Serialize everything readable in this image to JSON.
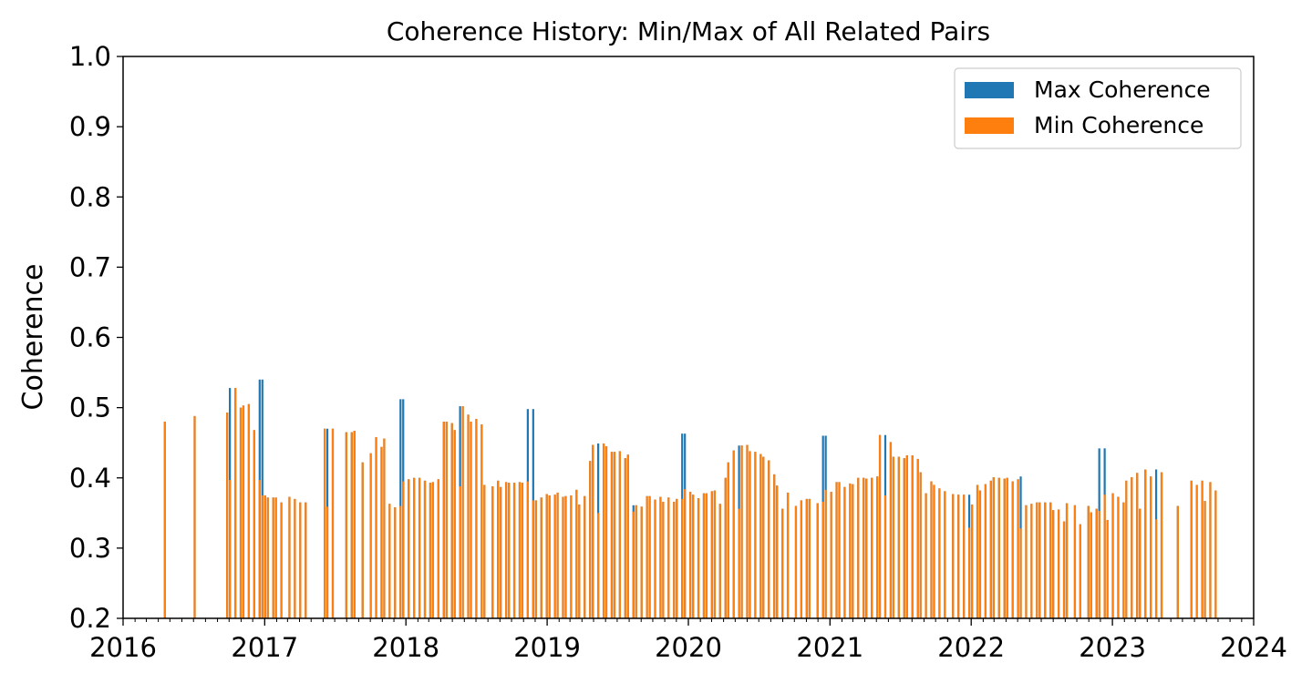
{
  "chart_data": {
    "type": "bar",
    "title": "Coherence History: Min/Max of All Related Pairs",
    "xlabel": "",
    "ylabel": "Coherence",
    "ylim": [
      0.2,
      1.0
    ],
    "xlim": [
      "2016-01-01",
      "2024-01-01"
    ],
    "yticks": [
      "0.2",
      "0.3",
      "0.4",
      "0.5",
      "0.6",
      "0.7",
      "0.8",
      "0.9",
      "1.0"
    ],
    "xticks": [
      "2016",
      "2017",
      "2018",
      "2019",
      "2020",
      "2021",
      "2022",
      "2023",
      "2024"
    ],
    "grid": false,
    "legend_position": "top-right",
    "series": [
      {
        "name": "Max Coherence",
        "color": "#1f77b4"
      },
      {
        "name": "Min Coherence",
        "color": "#ff7f0e"
      }
    ],
    "dates": [
      "2016-04-18",
      "2016-07-04",
      "2016-09-26",
      "2016-10-03",
      "2016-10-17",
      "2016-10-31",
      "2016-11-07",
      "2016-11-21",
      "2016-12-05",
      "2016-12-19",
      "2016-12-26",
      "2017-01-02",
      "2017-01-09",
      "2017-01-23",
      "2017-01-30",
      "2017-02-13",
      "2017-03-06",
      "2017-03-20",
      "2017-04-03",
      "2017-04-17",
      "2017-06-05",
      "2017-06-12",
      "2017-06-26",
      "2017-07-31",
      "2017-08-14",
      "2017-08-21",
      "2017-09-11",
      "2017-10-02",
      "2017-10-16",
      "2017-10-30",
      "2017-11-06",
      "2017-11-20",
      "2017-12-04",
      "2017-12-18",
      "2017-12-25",
      "2018-01-08",
      "2018-01-22",
      "2018-02-05",
      "2018-02-19",
      "2018-03-05",
      "2018-03-12",
      "2018-03-26",
      "2018-04-09",
      "2018-04-16",
      "2018-04-30",
      "2018-05-07",
      "2018-05-21",
      "2018-05-28",
      "2018-06-11",
      "2018-06-18",
      "2018-07-02",
      "2018-07-16",
      "2018-07-23",
      "2018-08-13",
      "2018-08-27",
      "2018-09-03",
      "2018-09-17",
      "2018-09-24",
      "2018-10-08",
      "2018-10-22",
      "2018-10-29",
      "2018-11-12",
      "2018-11-26",
      "2018-12-03",
      "2018-12-17",
      "2018-12-31",
      "2019-01-07",
      "2019-01-21",
      "2019-01-28",
      "2019-02-11",
      "2019-02-18",
      "2019-03-04",
      "2019-03-18",
      "2019-03-25",
      "2019-04-08",
      "2019-04-22",
      "2019-04-29",
      "2019-05-13",
      "2019-05-27",
      "2019-06-03",
      "2019-06-17",
      "2019-06-24",
      "2019-07-08",
      "2019-07-22",
      "2019-07-29",
      "2019-08-12",
      "2019-08-19",
      "2019-09-02",
      "2019-09-16",
      "2019-09-23",
      "2019-10-07",
      "2019-10-21",
      "2019-10-28",
      "2019-11-11",
      "2019-11-25",
      "2019-12-02",
      "2019-12-16",
      "2019-12-23",
      "2020-01-06",
      "2020-01-13",
      "2020-01-27",
      "2020-02-10",
      "2020-02-17",
      "2020-03-02",
      "2020-03-09",
      "2020-03-23",
      "2020-04-06",
      "2020-04-13",
      "2020-04-27",
      "2020-05-11",
      "2020-05-18",
      "2020-06-01",
      "2020-06-08",
      "2020-06-22",
      "2020-07-06",
      "2020-07-13",
      "2020-07-27",
      "2020-08-10",
      "2020-08-17",
      "2020-08-31",
      "2020-09-14",
      "2020-10-05",
      "2020-10-19",
      "2020-11-02",
      "2020-11-09",
      "2020-11-30",
      "2020-12-14",
      "2020-12-21",
      "2021-01-04",
      "2021-01-18",
      "2021-01-25",
      "2021-02-08",
      "2021-02-22",
      "2021-03-01",
      "2021-03-15",
      "2021-03-29",
      "2021-04-05",
      "2021-04-19",
      "2021-05-03",
      "2021-05-10",
      "2021-05-24",
      "2021-06-07",
      "2021-06-14",
      "2021-06-28",
      "2021-07-12",
      "2021-07-19",
      "2021-08-02",
      "2021-08-16",
      "2021-08-23",
      "2021-09-06",
      "2021-09-20",
      "2021-09-27",
      "2021-10-11",
      "2021-10-25",
      "2021-11-15",
      "2021-11-29",
      "2021-12-13",
      "2021-12-27",
      "2022-01-03",
      "2022-01-17",
      "2022-01-24",
      "2022-02-07",
      "2022-02-21",
      "2022-02-28",
      "2022-03-14",
      "2022-03-28",
      "2022-04-04",
      "2022-04-18",
      "2022-05-02",
      "2022-05-09",
      "2022-05-23",
      "2022-06-06",
      "2022-06-20",
      "2022-06-27",
      "2022-07-11",
      "2022-07-25",
      "2022-08-01",
      "2022-08-15",
      "2022-08-29",
      "2022-09-05",
      "2022-09-26",
      "2022-10-10",
      "2022-10-31",
      "2022-11-07",
      "2022-11-21",
      "2022-11-28",
      "2022-12-12",
      "2022-12-19",
      "2023-01-02",
      "2023-01-16",
      "2023-01-30",
      "2023-02-06",
      "2023-02-20",
      "2023-03-06",
      "2023-03-13",
      "2023-03-27",
      "2023-04-10",
      "2023-04-24",
      "2023-05-08",
      "2023-06-19",
      "2023-07-24",
      "2023-08-07",
      "2023-08-21",
      "2023-08-28",
      "2023-09-11",
      "2023-09-25",
      "2023-10-02",
      "2023-10-16"
    ],
    "max_values": [
      0.48,
      0.488,
      0.493,
      0.528,
      0.528,
      0.5,
      0.503,
      0.505,
      0.468,
      0.54,
      0.54,
      0.375,
      0.372,
      0.372,
      0.372,
      0.365,
      0.373,
      0.37,
      0.365,
      0.365,
      0.47,
      0.47,
      0.47,
      0.465,
      0.465,
      0.467,
      0.422,
      0.435,
      0.458,
      0.444,
      0.456,
      0.363,
      0.358,
      0.512,
      0.512,
      0.398,
      0.4,
      0.4,
      0.396,
      0.393,
      0.394,
      0.398,
      0.48,
      0.48,
      0.478,
      0.468,
      0.502,
      0.502,
      0.49,
      0.48,
      0.484,
      0.476,
      0.39,
      0.388,
      0.396,
      0.387,
      0.394,
      0.393,
      0.393,
      0.394,
      0.393,
      0.498,
      0.498,
      0.368,
      0.372,
      0.377,
      0.375,
      0.376,
      0.379,
      0.373,
      0.374,
      0.375,
      0.383,
      0.362,
      0.374,
      0.424,
      0.447,
      0.449,
      0.449,
      0.445,
      0.437,
      0.437,
      0.438,
      0.428,
      0.433,
      0.361,
      0.361,
      0.359,
      0.374,
      0.374,
      0.369,
      0.373,
      0.366,
      0.372,
      0.366,
      0.37,
      0.463,
      0.463,
      0.38,
      0.376,
      0.371,
      0.378,
      0.378,
      0.381,
      0.382,
      0.363,
      0.4,
      0.422,
      0.439,
      0.446,
      0.446,
      0.447,
      0.438,
      0.437,
      0.434,
      0.43,
      0.425,
      0.405,
      0.389,
      0.356,
      0.379,
      0.36,
      0.368,
      0.37,
      0.37,
      0.364,
      0.46,
      0.46,
      0.38,
      0.394,
      0.394,
      0.387,
      0.392,
      0.391,
      0.4,
      0.4,
      0.399,
      0.4,
      0.402,
      0.461,
      0.461,
      0.451,
      0.43,
      0.43,
      0.428,
      0.432,
      0.432,
      0.427,
      0.408,
      0.378,
      0.395,
      0.39,
      0.385,
      0.381,
      0.377,
      0.376,
      0.376,
      0.376,
      0.362,
      0.39,
      0.382,
      0.391,
      0.396,
      0.401,
      0.4,
      0.399,
      0.4,
      0.395,
      0.398,
      0.402,
      0.361,
      0.363,
      0.365,
      0.365,
      0.365,
      0.365,
      0.354,
      0.355,
      0.338,
      0.364,
      0.361,
      0.334,
      0.36,
      0.351,
      0.356,
      0.442,
      0.442,
      0.34,
      0.378,
      0.373,
      0.365,
      0.396,
      0.401,
      0.407,
      0.356,
      0.412,
      0.402,
      0.412,
      0.408,
      0.36,
      0.396,
      0.39,
      0.396,
      0.367,
      0.394,
      0.382
    ],
    "min_values": [
      0.48,
      0.488,
      0.493,
      0.397,
      0.528,
      0.5,
      0.503,
      0.505,
      0.468,
      0.397,
      0.375,
      0.375,
      0.372,
      0.372,
      0.372,
      0.365,
      0.373,
      0.37,
      0.365,
      0.365,
      0.47,
      0.359,
      0.47,
      0.465,
      0.465,
      0.467,
      0.422,
      0.435,
      0.458,
      0.444,
      0.456,
      0.363,
      0.358,
      0.36,
      0.395,
      0.398,
      0.4,
      0.4,
      0.396,
      0.393,
      0.394,
      0.398,
      0.48,
      0.48,
      0.478,
      0.468,
      0.388,
      0.502,
      0.49,
      0.48,
      0.484,
      0.476,
      0.39,
      0.388,
      0.396,
      0.387,
      0.394,
      0.393,
      0.393,
      0.394,
      0.393,
      0.395,
      0.368,
      0.368,
      0.372,
      0.377,
      0.375,
      0.376,
      0.379,
      0.373,
      0.374,
      0.375,
      0.383,
      0.362,
      0.374,
      0.424,
      0.447,
      0.35,
      0.449,
      0.445,
      0.437,
      0.437,
      0.438,
      0.428,
      0.433,
      0.352,
      0.361,
      0.359,
      0.374,
      0.374,
      0.369,
      0.373,
      0.366,
      0.372,
      0.366,
      0.37,
      0.37,
      0.384,
      0.38,
      0.376,
      0.371,
      0.378,
      0.378,
      0.381,
      0.382,
      0.363,
      0.4,
      0.422,
      0.439,
      0.356,
      0.446,
      0.447,
      0.438,
      0.437,
      0.434,
      0.43,
      0.425,
      0.405,
      0.389,
      0.356,
      0.379,
      0.36,
      0.368,
      0.37,
      0.37,
      0.364,
      0.366,
      0.383,
      0.38,
      0.394,
      0.394,
      0.387,
      0.392,
      0.391,
      0.4,
      0.4,
      0.399,
      0.4,
      0.402,
      0.461,
      0.375,
      0.451,
      0.43,
      0.43,
      0.428,
      0.432,
      0.432,
      0.427,
      0.408,
      0.378,
      0.395,
      0.39,
      0.385,
      0.381,
      0.377,
      0.376,
      0.376,
      0.329,
      0.362,
      0.39,
      0.382,
      0.391,
      0.396,
      0.401,
      0.4,
      0.399,
      0.4,
      0.395,
      0.398,
      0.328,
      0.361,
      0.363,
      0.365,
      0.365,
      0.365,
      0.365,
      0.354,
      0.355,
      0.338,
      0.364,
      0.361,
      0.334,
      0.36,
      0.351,
      0.356,
      0.353,
      0.376,
      0.34,
      0.378,
      0.373,
      0.365,
      0.396,
      0.401,
      0.407,
      0.356,
      0.412,
      0.402,
      0.341,
      0.408,
      0.36,
      0.396,
      0.39,
      0.396,
      0.367,
      0.394,
      0.382
    ]
  }
}
